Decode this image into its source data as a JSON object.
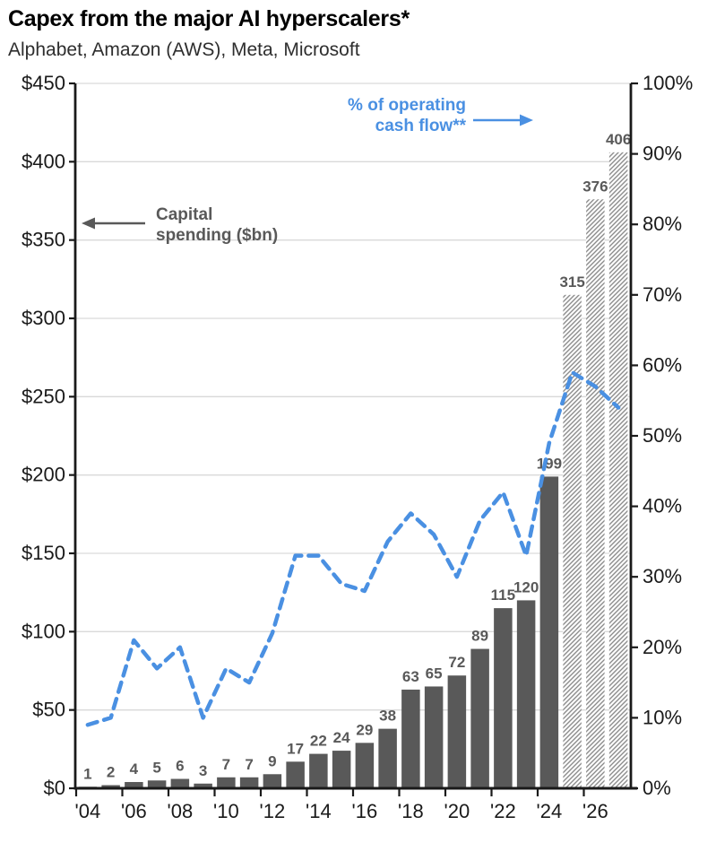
{
  "header": {
    "title": "Capex from the major AI hyperscalers*",
    "subtitle": "Alphabet, Amazon (AWS), Meta, Microsoft"
  },
  "annotations": {
    "capital_spending_line1": "Capital",
    "capital_spending_line2": "spending ($bn)",
    "cash_flow_line1": "% of operating",
    "cash_flow_line2": "cash flow**"
  },
  "colors": {
    "bar": "#595959",
    "bar_forecast_hatch": "#8c8c8c",
    "line": "#4a90e2",
    "grid": "#d9d9d9",
    "axis": "#1a1a1a",
    "bar_label": "#595959",
    "annotation_gray": "#595959"
  },
  "chart_data": {
    "type": "combo",
    "title": "Capex from the major AI hyperscalers*",
    "subtitle": "Alphabet, Amazon (AWS), Meta, Microsoft",
    "categories": [
      "2004",
      "2005",
      "2006",
      "2007",
      "2008",
      "2009",
      "2010",
      "2011",
      "2012",
      "2013",
      "2014",
      "2015",
      "2016",
      "2017",
      "2018",
      "2019",
      "2020",
      "2021",
      "2022",
      "2023",
      "2024",
      "2025",
      "2026",
      "2027"
    ],
    "series": [
      {
        "name": "Capital spending ($bn)",
        "type": "bar",
        "axis": "left",
        "values": [
          1,
          2,
          4,
          5,
          6,
          3,
          7,
          7,
          9,
          17,
          22,
          24,
          29,
          38,
          63,
          65,
          72,
          89,
          115,
          120,
          199,
          315,
          376,
          406
        ],
        "forecast_from_index": 21,
        "value_labels_shown": true
      },
      {
        "name": "% of operating cash flow**",
        "type": "line",
        "axis": "right",
        "style": "dashed",
        "values": [
          9,
          10,
          21,
          17,
          20,
          10,
          17,
          15,
          22,
          33,
          33,
          29,
          28,
          35,
          39,
          36,
          30,
          38,
          42,
          33,
          49,
          59,
          57,
          54
        ]
      }
    ],
    "x_tick_labels": [
      "'04",
      "'06",
      "'08",
      "'10",
      "'12",
      "'14",
      "'16",
      "'18",
      "'20",
      "'22",
      "'24",
      "'26"
    ],
    "left_axis": {
      "min": 0,
      "max": 450,
      "step": 50,
      "tick_labels": [
        "$0",
        "$50",
        "$100",
        "$150",
        "$200",
        "$250",
        "$300",
        "$350",
        "$400",
        "$450"
      ]
    },
    "right_axis": {
      "min": 0,
      "max": 100,
      "step": 10,
      "tick_labels": [
        "0%",
        "10%",
        "20%",
        "30%",
        "40%",
        "50%",
        "60%",
        "70%",
        "80%",
        "90%",
        "100%"
      ]
    },
    "grid": true,
    "legend_position": "none"
  }
}
